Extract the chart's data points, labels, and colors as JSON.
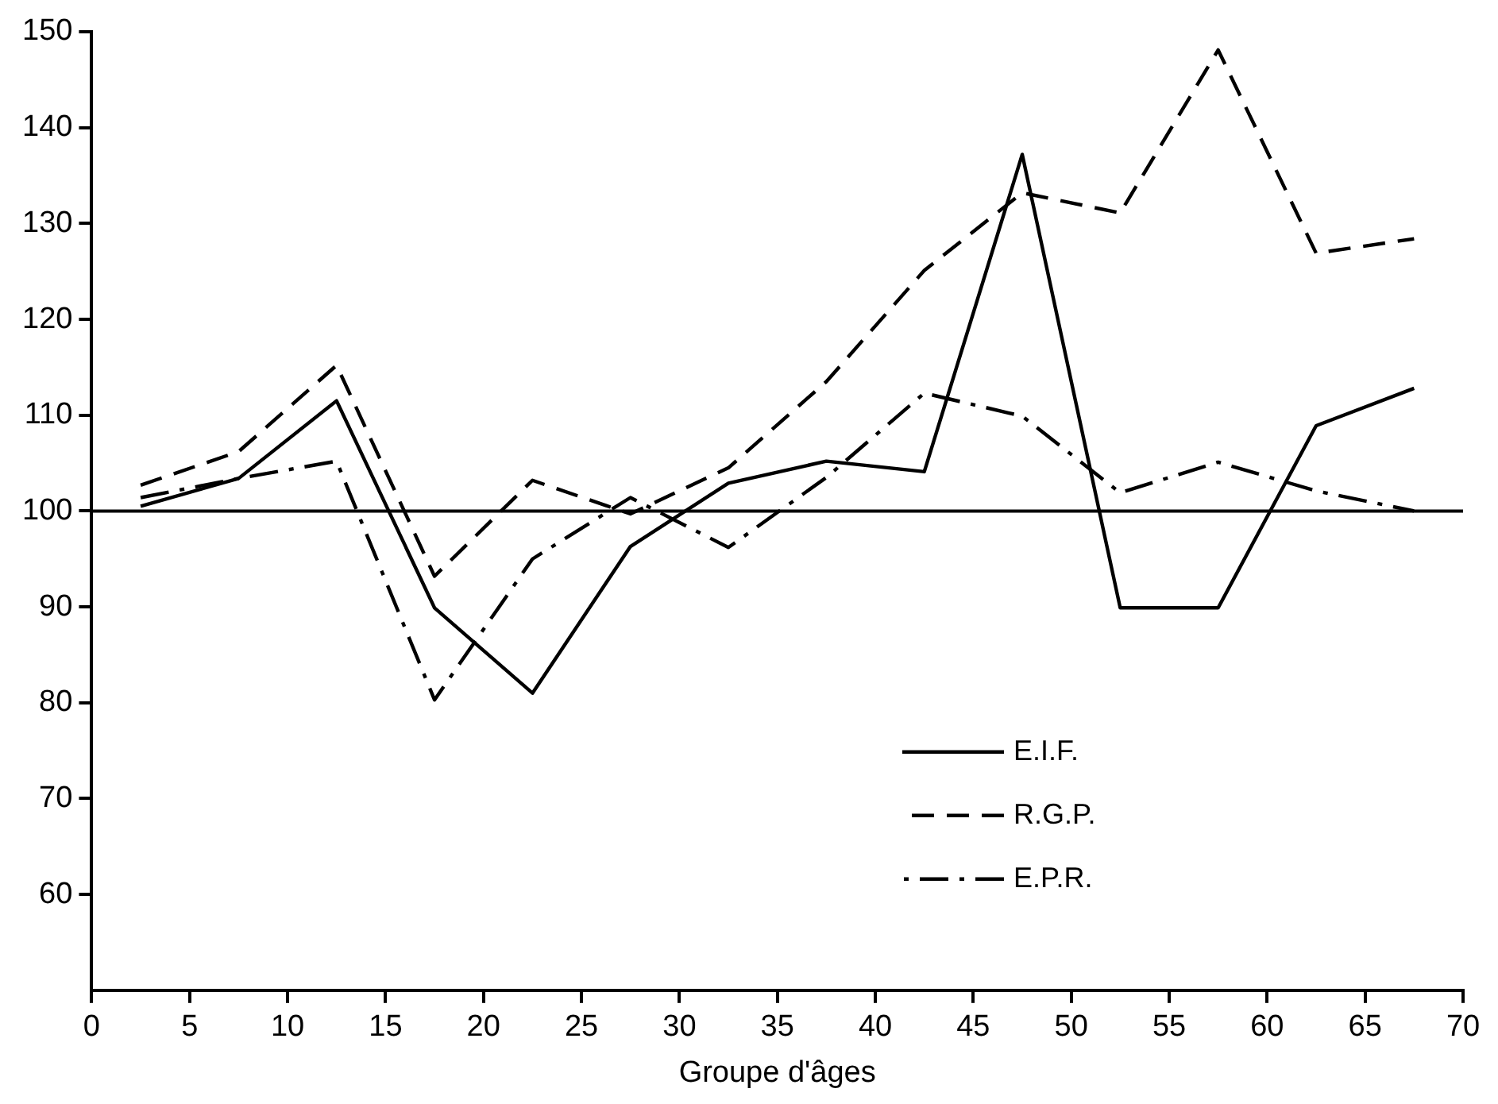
{
  "chart_data": {
    "type": "line",
    "xlabel": "Groupe d'âges",
    "x": [
      2.5,
      7.5,
      12.5,
      17.5,
      22.5,
      27.5,
      32.5,
      37.5,
      42.5,
      47.5,
      52.5,
      57.5,
      62.5,
      67.5
    ],
    "series": [
      {
        "name": "E.I.F.",
        "color": "#000000",
        "line_style": "solid",
        "values": [
          100.5,
          103.4,
          111.5,
          89.9,
          81,
          96.3,
          102.9,
          105.2,
          104.1,
          137.2,
          89.9,
          89.9,
          108.9,
          112.8
        ]
      },
      {
        "name": "R.G.P.",
        "color": "#000000",
        "line_style": "dashed",
        "values": [
          102.7,
          106.2,
          115.2,
          93.2,
          103.2,
          99.7,
          104.5,
          113.5,
          125.1,
          133.2,
          131.1,
          148.1,
          126.9,
          128.4
        ]
      },
      {
        "name": "E.P.R.",
        "color": "#000000",
        "line_style": "dashdot",
        "values": [
          101.4,
          103.4,
          105.2,
          80.3,
          95,
          101.4,
          96.2,
          103.5,
          112.3,
          109.9,
          101.9,
          105.1,
          102.1,
          100
        ]
      }
    ],
    "xlim": [
      0,
      70
    ],
    "xticks": [
      0,
      5,
      10,
      15,
      20,
      25,
      30,
      35,
      40,
      45,
      50,
      55,
      60,
      65,
      70
    ],
    "ylim": [
      50,
      150
    ],
    "yticks": [
      60,
      70,
      80,
      90,
      100,
      110,
      120,
      130,
      140,
      150
    ],
    "ref_lines": [
      {
        "axis": "y",
        "value": 100,
        "color": "#000000"
      }
    ],
    "grid": false,
    "legend": "bottom right",
    "marker": "none"
  }
}
